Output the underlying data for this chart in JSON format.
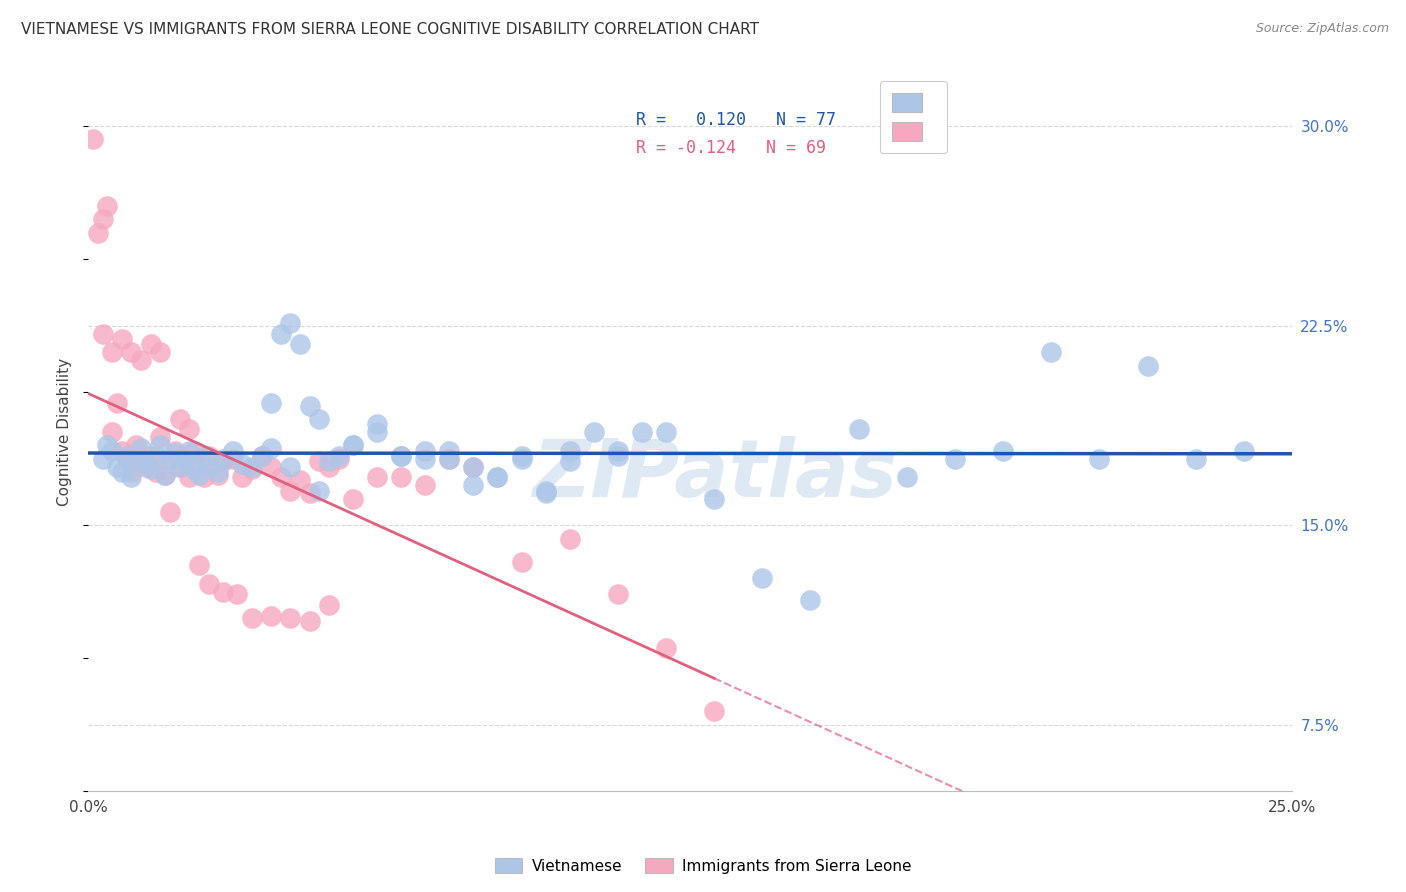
{
  "title": "VIETNAMESE VS IMMIGRANTS FROM SIERRA LEONE COGNITIVE DISABILITY CORRELATION CHART",
  "source": "Source: ZipAtlas.com",
  "ylabel": "Cognitive Disability",
  "xlim": [
    0.0,
    0.25
  ],
  "ylim": [
    0.05,
    0.32
  ],
  "yticks_right": [
    0.075,
    0.15,
    0.225,
    0.3
  ],
  "ytick_labels_right": [
    "7.5%",
    "15.0%",
    "22.5%",
    "30.0%"
  ],
  "group1_color": "#adc6e8",
  "group2_color": "#f5a8bf",
  "group1_line_color": "#2255aa",
  "group2_line_color": "#e06080",
  "legend_R1": " 0.120",
  "legend_N1": "77",
  "legend_R2": "-0.124",
  "legend_N2": "69",
  "watermark": "ZIPatlas",
  "background_color": "#ffffff",
  "grid_color": "#d8d8d8",
  "group1_x": [
    0.003,
    0.004,
    0.005,
    0.006,
    0.007,
    0.008,
    0.009,
    0.01,
    0.011,
    0.012,
    0.013,
    0.014,
    0.015,
    0.016,
    0.017,
    0.018,
    0.019,
    0.02,
    0.021,
    0.022,
    0.023,
    0.024,
    0.025,
    0.027,
    0.028,
    0.03,
    0.032,
    0.034,
    0.036,
    0.038,
    0.04,
    0.042,
    0.044,
    0.046,
    0.048,
    0.05,
    0.055,
    0.06,
    0.065,
    0.07,
    0.075,
    0.08,
    0.085,
    0.09,
    0.095,
    0.1,
    0.11,
    0.12,
    0.13,
    0.14,
    0.15,
    0.16,
    0.17,
    0.18,
    0.19,
    0.2,
    0.21,
    0.22,
    0.23,
    0.24,
    0.038,
    0.042,
    0.048,
    0.052,
    0.055,
    0.06,
    0.065,
    0.07,
    0.075,
    0.08,
    0.085,
    0.09,
    0.095,
    0.1,
    0.105,
    0.11,
    0.115
  ],
  "group1_y": [
    0.175,
    0.18,
    0.178,
    0.172,
    0.17,
    0.176,
    0.168,
    0.174,
    0.179,
    0.173,
    0.171,
    0.176,
    0.18,
    0.169,
    0.175,
    0.177,
    0.172,
    0.174,
    0.178,
    0.171,
    0.169,
    0.176,
    0.172,
    0.17,
    0.175,
    0.178,
    0.173,
    0.172,
    0.176,
    0.179,
    0.222,
    0.226,
    0.218,
    0.195,
    0.19,
    0.174,
    0.18,
    0.185,
    0.176,
    0.175,
    0.178,
    0.172,
    0.168,
    0.176,
    0.162,
    0.174,
    0.176,
    0.185,
    0.16,
    0.13,
    0.122,
    0.186,
    0.168,
    0.175,
    0.178,
    0.215,
    0.175,
    0.21,
    0.175,
    0.178,
    0.196,
    0.172,
    0.163,
    0.176,
    0.18,
    0.188,
    0.176,
    0.178,
    0.175,
    0.165,
    0.168,
    0.175,
    0.163,
    0.178,
    0.185,
    0.178,
    0.185
  ],
  "group2_x": [
    0.001,
    0.002,
    0.003,
    0.004,
    0.005,
    0.006,
    0.007,
    0.008,
    0.009,
    0.01,
    0.011,
    0.012,
    0.013,
    0.014,
    0.015,
    0.016,
    0.017,
    0.018,
    0.019,
    0.02,
    0.021,
    0.022,
    0.023,
    0.024,
    0.025,
    0.027,
    0.028,
    0.03,
    0.032,
    0.034,
    0.036,
    0.038,
    0.04,
    0.042,
    0.044,
    0.046,
    0.048,
    0.05,
    0.052,
    0.055,
    0.06,
    0.065,
    0.07,
    0.075,
    0.08,
    0.09,
    0.1,
    0.11,
    0.12,
    0.13,
    0.003,
    0.005,
    0.007,
    0.009,
    0.011,
    0.013,
    0.015,
    0.017,
    0.019,
    0.021,
    0.023,
    0.025,
    0.028,
    0.031,
    0.034,
    0.038,
    0.042,
    0.046,
    0.05
  ],
  "group2_y": [
    0.295,
    0.26,
    0.265,
    0.27,
    0.185,
    0.196,
    0.178,
    0.175,
    0.17,
    0.18,
    0.175,
    0.172,
    0.176,
    0.17,
    0.183,
    0.169,
    0.175,
    0.178,
    0.172,
    0.174,
    0.168,
    0.178,
    0.172,
    0.168,
    0.176,
    0.169,
    0.174,
    0.175,
    0.168,
    0.171,
    0.176,
    0.172,
    0.168,
    0.163,
    0.167,
    0.162,
    0.174,
    0.172,
    0.175,
    0.16,
    0.168,
    0.168,
    0.165,
    0.175,
    0.172,
    0.136,
    0.145,
    0.124,
    0.104,
    0.08,
    0.222,
    0.215,
    0.22,
    0.215,
    0.212,
    0.218,
    0.215,
    0.155,
    0.19,
    0.186,
    0.135,
    0.128,
    0.125,
    0.124,
    0.115,
    0.116,
    0.115,
    0.114,
    0.12
  ]
}
